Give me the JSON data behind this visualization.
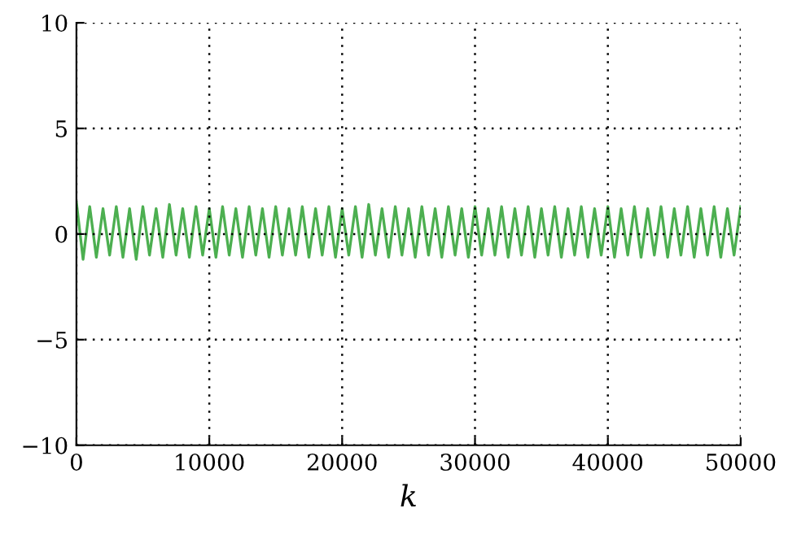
{
  "chart_data": {
    "type": "line",
    "xlabel": "k",
    "x": [
      0,
      500,
      1000,
      1500,
      2000,
      2500,
      3000,
      3500,
      4000,
      4500,
      5000,
      5500,
      6000,
      6500,
      7000,
      7500,
      8000,
      8500,
      9000,
      9500,
      10000,
      10500,
      11000,
      11500,
      12000,
      12500,
      13000,
      13500,
      14000,
      14500,
      15000,
      15500,
      16000,
      16500,
      17000,
      17500,
      18000,
      18500,
      19000,
      19500,
      20000,
      20500,
      21000,
      21500,
      22000,
      22500,
      23000,
      23500,
      24000,
      24500,
      25000,
      25500,
      26000,
      26500,
      27000,
      27500,
      28000,
      28500,
      29000,
      29500,
      30000,
      30500,
      31000,
      31500,
      32000,
      32500,
      33000,
      33500,
      34000,
      34500,
      35000,
      35500,
      36000,
      36500,
      37000,
      37500,
      38000,
      38500,
      39000,
      39500,
      40000,
      40500,
      41000,
      41500,
      42000,
      42500,
      43000,
      43500,
      44000,
      44500,
      45000,
      45500,
      46000,
      46500,
      47000,
      47500,
      48000,
      48500,
      49000,
      49500,
      50000
    ],
    "series": [
      {
        "color": "#4caf50",
        "values": [
          1.5,
          -1.2,
          1.3,
          -1.1,
          1.2,
          -1.0,
          1.3,
          -1.1,
          1.2,
          -1.2,
          1.3,
          -1.0,
          1.2,
          -1.1,
          1.4,
          -1.0,
          1.2,
          -1.1,
          1.3,
          -1.0,
          1.2,
          -1.1,
          1.3,
          -1.0,
          1.2,
          -1.1,
          1.3,
          -1.0,
          1.2,
          -1.1,
          1.3,
          -1.0,
          1.2,
          -1.0,
          1.3,
          -1.1,
          1.2,
          -1.0,
          1.3,
          -1.1,
          1.2,
          -1.0,
          1.3,
          -1.1,
          1.4,
          -1.0,
          1.2,
          -1.1,
          1.3,
          -1.0,
          1.2,
          -1.1,
          1.3,
          -1.0,
          1.2,
          -1.1,
          1.3,
          -1.0,
          1.2,
          -1.1,
          1.3,
          -1.0,
          1.2,
          -1.0,
          1.3,
          -1.1,
          1.2,
          -1.0,
          1.3,
          -1.1,
          1.2,
          -1.0,
          1.3,
          -1.1,
          1.2,
          -1.0,
          1.3,
          -1.1,
          1.2,
          -1.0,
          1.3,
          -1.1,
          1.2,
          -1.0,
          1.3,
          -1.1,
          1.2,
          -1.0,
          1.3,
          -1.1,
          1.2,
          -1.0,
          1.3,
          -1.1,
          1.2,
          -1.0,
          1.3,
          -1.1,
          1.2,
          -1.0,
          1.3
        ]
      }
    ],
    "xlim": [
      0,
      50000
    ],
    "xticks": [
      0,
      10000,
      20000,
      30000,
      40000,
      50000
    ],
    "ylim": [
      -10,
      10
    ],
    "yticks": [
      -10,
      -5,
      0,
      5,
      10
    ],
    "grid": true
  }
}
